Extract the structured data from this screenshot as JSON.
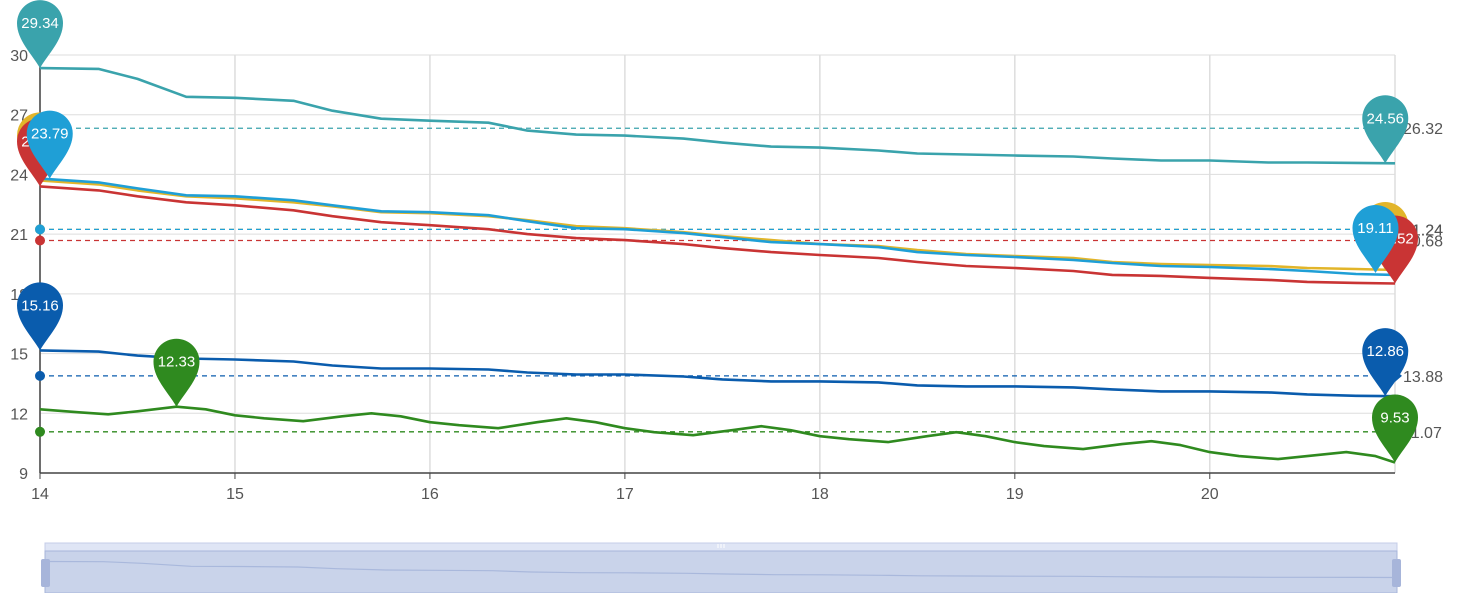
{
  "chart_data": {
    "type": "line",
    "x_ticks": [
      "14",
      "15",
      "16",
      "17",
      "18",
      "19",
      "20"
    ],
    "xlim": [
      14,
      20.95
    ],
    "y_ticks": [
      "9",
      "12",
      "15",
      "18",
      "21",
      "24",
      "27",
      "30"
    ],
    "ylim": [
      9,
      30
    ],
    "grid": true,
    "series": [
      {
        "color": "#3aa3ac",
        "points": [
          [
            14,
            29.34
          ],
          [
            14.3,
            29.3
          ],
          [
            14.5,
            28.8
          ],
          [
            14.75,
            27.9
          ],
          [
            15,
            27.85
          ],
          [
            15.3,
            27.7
          ],
          [
            15.5,
            27.2
          ],
          [
            15.75,
            26.8
          ],
          [
            16,
            26.7
          ],
          [
            16.3,
            26.6
          ],
          [
            16.5,
            26.2
          ],
          [
            16.75,
            26.0
          ],
          [
            17,
            25.95
          ],
          [
            17.3,
            25.8
          ],
          [
            17.5,
            25.6
          ],
          [
            17.75,
            25.4
          ],
          [
            18,
            25.35
          ],
          [
            18.3,
            25.2
          ],
          [
            18.5,
            25.05
          ],
          [
            18.75,
            25.0
          ],
          [
            19,
            24.95
          ],
          [
            19.3,
            24.9
          ],
          [
            19.5,
            24.8
          ],
          [
            19.75,
            24.7
          ],
          [
            20,
            24.7
          ],
          [
            20.3,
            24.6
          ],
          [
            20.5,
            24.6
          ],
          [
            20.75,
            24.58
          ],
          [
            20.95,
            24.56
          ]
        ],
        "max": {
          "value": "29.34",
          "x": 14,
          "y": 29.34
        },
        "min": {
          "value": "24.56",
          "x": 20.9,
          "y": 24.56
        },
        "average": {
          "value": "26.32",
          "y": 26.32
        }
      },
      {
        "color": "#e2b52a",
        "points": [
          [
            14,
            23.7
          ],
          [
            14.3,
            23.5
          ],
          [
            14.5,
            23.2
          ],
          [
            14.75,
            22.9
          ],
          [
            15,
            22.8
          ],
          [
            15.3,
            22.6
          ],
          [
            15.5,
            22.4
          ],
          [
            15.75,
            22.1
          ],
          [
            16,
            22.05
          ],
          [
            16.3,
            21.9
          ],
          [
            16.5,
            21.7
          ],
          [
            16.75,
            21.4
          ],
          [
            17,
            21.3
          ],
          [
            17.3,
            21.1
          ],
          [
            17.5,
            20.9
          ],
          [
            17.75,
            20.7
          ],
          [
            18,
            20.5
          ],
          [
            18.3,
            20.4
          ],
          [
            18.5,
            20.2
          ],
          [
            18.75,
            20.0
          ],
          [
            19,
            19.9
          ],
          [
            19.3,
            19.8
          ],
          [
            19.5,
            19.6
          ],
          [
            19.75,
            19.5
          ],
          [
            20,
            19.45
          ],
          [
            20.3,
            19.4
          ],
          [
            20.5,
            19.3
          ],
          [
            20.75,
            19.25
          ],
          [
            20.95,
            19.2
          ]
        ],
        "max": {
          "value": "23.56",
          "x": 14,
          "y": 23.7
        },
        "min": {
          "value": "19.11",
          "x": 20.9,
          "y": 19.2
        },
        "average": {
          "value": "21.24",
          "y": 21.24
        }
      },
      {
        "color": "#c93434",
        "points": [
          [
            14,
            23.4
          ],
          [
            14.3,
            23.2
          ],
          [
            14.5,
            22.9
          ],
          [
            14.75,
            22.6
          ],
          [
            15,
            22.45
          ],
          [
            15.3,
            22.2
          ],
          [
            15.5,
            21.9
          ],
          [
            15.75,
            21.6
          ],
          [
            16,
            21.45
          ],
          [
            16.3,
            21.25
          ],
          [
            16.5,
            21.0
          ],
          [
            16.75,
            20.8
          ],
          [
            17,
            20.7
          ],
          [
            17.3,
            20.5
          ],
          [
            17.5,
            20.3
          ],
          [
            17.75,
            20.1
          ],
          [
            18,
            19.95
          ],
          [
            18.3,
            19.8
          ],
          [
            18.5,
            19.6
          ],
          [
            18.75,
            19.4
          ],
          [
            19,
            19.3
          ],
          [
            19.3,
            19.15
          ],
          [
            19.5,
            18.95
          ],
          [
            19.75,
            18.9
          ],
          [
            20,
            18.8
          ],
          [
            20.3,
            18.7
          ],
          [
            20.5,
            18.6
          ],
          [
            20.75,
            18.55
          ],
          [
            20.95,
            18.52
          ]
        ],
        "max": {
          "value": "23.56",
          "x": 14,
          "y": 23.4
        },
        "min": {
          "value": "18.52",
          "x": 20.95,
          "y": 18.52
        },
        "average": {
          "value": "20.68",
          "y": 20.68
        }
      },
      {
        "color": "#1f9fd6",
        "points": [
          [
            14,
            23.79
          ],
          [
            14.3,
            23.6
          ],
          [
            14.5,
            23.3
          ],
          [
            14.75,
            22.95
          ],
          [
            15,
            22.9
          ],
          [
            15.3,
            22.7
          ],
          [
            15.5,
            22.45
          ],
          [
            15.75,
            22.15
          ],
          [
            16,
            22.1
          ],
          [
            16.3,
            21.95
          ],
          [
            16.5,
            21.65
          ],
          [
            16.75,
            21.3
          ],
          [
            17,
            21.25
          ],
          [
            17.3,
            21.05
          ],
          [
            17.5,
            20.85
          ],
          [
            17.75,
            20.6
          ],
          [
            18,
            20.5
          ],
          [
            18.3,
            20.35
          ],
          [
            18.5,
            20.1
          ],
          [
            18.75,
            19.95
          ],
          [
            19,
            19.85
          ],
          [
            19.3,
            19.7
          ],
          [
            19.5,
            19.55
          ],
          [
            19.75,
            19.4
          ],
          [
            20,
            19.35
          ],
          [
            20.3,
            19.25
          ],
          [
            20.5,
            19.15
          ],
          [
            20.75,
            19.0
          ],
          [
            20.95,
            18.95
          ]
        ],
        "max": {
          "value": "23.79",
          "x": 14.05,
          "y": 23.79
        },
        "min": {
          "value": "19.11",
          "x": 20.85,
          "y": 19.05
        },
        "average": {
          "value": "21.24",
          "y": 21.24
        }
      },
      {
        "color": "#0a5cad",
        "points": [
          [
            14,
            15.16
          ],
          [
            14.3,
            15.1
          ],
          [
            14.5,
            14.9
          ],
          [
            14.75,
            14.75
          ],
          [
            15,
            14.7
          ],
          [
            15.3,
            14.6
          ],
          [
            15.5,
            14.4
          ],
          [
            15.75,
            14.25
          ],
          [
            16,
            14.25
          ],
          [
            16.3,
            14.2
          ],
          [
            16.5,
            14.05
          ],
          [
            16.75,
            13.95
          ],
          [
            17,
            13.95
          ],
          [
            17.3,
            13.85
          ],
          [
            17.5,
            13.7
          ],
          [
            17.75,
            13.6
          ],
          [
            18,
            13.6
          ],
          [
            18.3,
            13.55
          ],
          [
            18.5,
            13.4
          ],
          [
            18.75,
            13.35
          ],
          [
            19,
            13.35
          ],
          [
            19.3,
            13.3
          ],
          [
            19.5,
            13.2
          ],
          [
            19.75,
            13.1
          ],
          [
            20,
            13.1
          ],
          [
            20.3,
            13.05
          ],
          [
            20.5,
            12.95
          ],
          [
            20.75,
            12.88
          ],
          [
            20.95,
            12.86
          ]
        ],
        "max": {
          "value": "15.16",
          "x": 14,
          "y": 15.16
        },
        "min": {
          "value": "12.86",
          "x": 20.9,
          "y": 12.86
        },
        "average": {
          "value": "13.88",
          "y": 13.88
        }
      },
      {
        "color": "#2f8a1f",
        "points": [
          [
            14,
            12.2
          ],
          [
            14.2,
            12.05
          ],
          [
            14.35,
            11.95
          ],
          [
            14.5,
            12.1
          ],
          [
            14.7,
            12.33
          ],
          [
            14.85,
            12.2
          ],
          [
            15,
            11.9
          ],
          [
            15.15,
            11.75
          ],
          [
            15.35,
            11.6
          ],
          [
            15.55,
            11.85
          ],
          [
            15.7,
            12.0
          ],
          [
            15.85,
            11.85
          ],
          [
            16,
            11.55
          ],
          [
            16.15,
            11.4
          ],
          [
            16.35,
            11.25
          ],
          [
            16.55,
            11.55
          ],
          [
            16.7,
            11.75
          ],
          [
            16.85,
            11.55
          ],
          [
            17,
            11.25
          ],
          [
            17.15,
            11.05
          ],
          [
            17.35,
            10.9
          ],
          [
            17.55,
            11.15
          ],
          [
            17.7,
            11.35
          ],
          [
            17.85,
            11.15
          ],
          [
            18,
            10.85
          ],
          [
            18.15,
            10.7
          ],
          [
            18.35,
            10.55
          ],
          [
            18.55,
            10.85
          ],
          [
            18.7,
            11.05
          ],
          [
            18.85,
            10.85
          ],
          [
            19,
            10.55
          ],
          [
            19.15,
            10.35
          ],
          [
            19.35,
            10.2
          ],
          [
            19.55,
            10.45
          ],
          [
            19.7,
            10.6
          ],
          [
            19.85,
            10.4
          ],
          [
            20,
            10.05
          ],
          [
            20.15,
            9.85
          ],
          [
            20.35,
            9.7
          ],
          [
            20.55,
            9.9
          ],
          [
            20.7,
            10.05
          ],
          [
            20.85,
            9.85
          ],
          [
            20.95,
            9.53
          ]
        ],
        "max": {
          "value": "12.33",
          "x": 14.7,
          "y": 12.33
        },
        "min": {
          "value": "9.53",
          "x": 20.95,
          "y": 9.53
        },
        "average": {
          "value": "11.07",
          "y": 11.07
        }
      }
    ],
    "data_zoom": {
      "start_percent": 0,
      "end_percent": 100
    }
  }
}
